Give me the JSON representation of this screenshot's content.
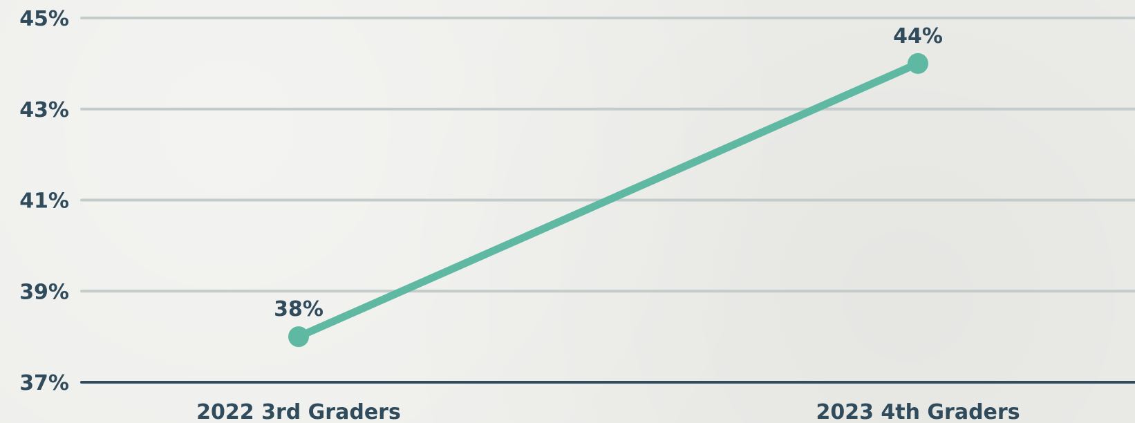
{
  "chart_data": {
    "type": "line",
    "categories": [
      "2022 3rd Graders",
      "2023 4th Graders"
    ],
    "series": [
      {
        "values": [
          38,
          44
        ],
        "labels": [
          "38%",
          "44%"
        ]
      }
    ],
    "yticks": [
      "37%",
      "39%",
      "41%",
      "43%",
      "45%"
    ],
    "ytick_values": [
      37,
      39,
      41,
      43,
      45
    ],
    "ylim": [
      37,
      45
    ],
    "grid": true,
    "colors": {
      "line": "#5fb8a2",
      "grid": "#c3cbcb",
      "axis": "#2f4b5c",
      "text": "#2f4b5c"
    }
  }
}
